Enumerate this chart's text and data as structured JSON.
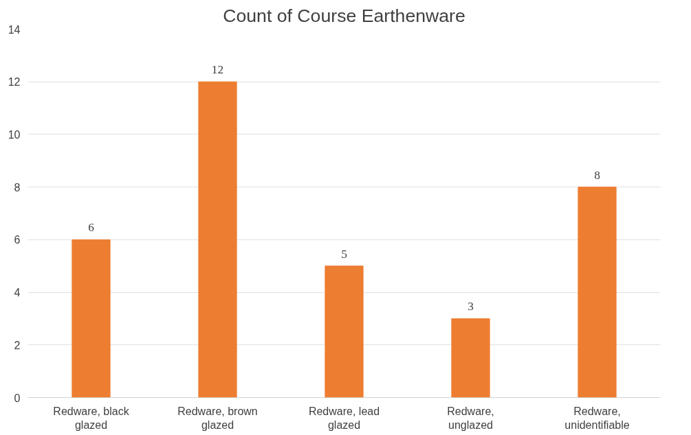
{
  "chart_data": {
    "type": "bar",
    "title": "Count of Course Earthenware",
    "categories": [
      "Redware, black glazed",
      "Redware, brown glazed",
      "Redware, lead glazed",
      "Redware, unglazed",
      "Redware, unidentifiable"
    ],
    "values": [
      6,
      12,
      5,
      3,
      8
    ],
    "color": "#ed7d31",
    "ylim": [
      0,
      14
    ],
    "yticks": [
      0,
      2,
      4,
      6,
      8,
      10,
      12,
      14
    ],
    "grid": "y",
    "data_labels": true
  }
}
